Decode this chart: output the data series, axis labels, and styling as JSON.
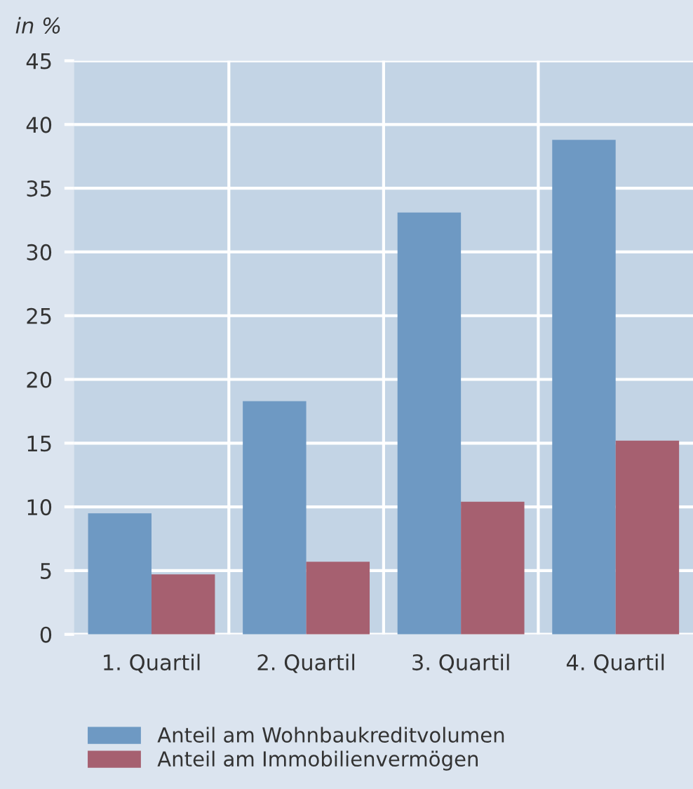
{
  "chart_data": {
    "type": "bar",
    "ylabel": "in %",
    "categories": [
      "1. Quartil",
      "2. Quartil",
      "3. Quartil",
      "4. Quartil"
    ],
    "series": [
      {
        "name": "Anteil am Wohnbaukreditvolumen",
        "color": "#6e99c3",
        "values": [
          9.5,
          18.3,
          33.1,
          38.8
        ]
      },
      {
        "name": "Anteil am Immobilienvermögen",
        "color": "#a66070",
        "values": [
          4.7,
          5.7,
          10.4,
          15.2
        ]
      }
    ],
    "ylim": [
      0,
      45
    ],
    "yticks": [
      0,
      5,
      10,
      15,
      20,
      25,
      30,
      35,
      40,
      45
    ],
    "grid": true,
    "legend": "bottom left"
  }
}
